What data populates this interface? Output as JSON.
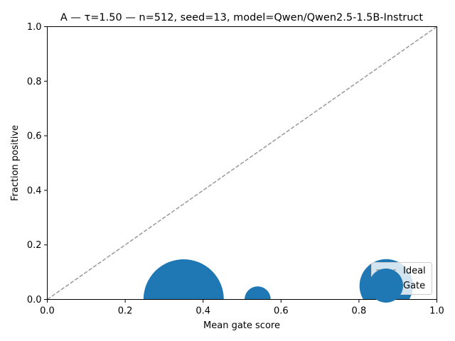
{
  "chart_data": {
    "type": "scatter",
    "title": "A — τ=1.50 — n=512, seed=13, model=Qwen/Qwen2.5-1.5B-Instruct",
    "xlabel": "Mean gate score",
    "ylabel": "Fraction positive",
    "xlim": [
      0.0,
      1.0
    ],
    "ylim": [
      0.0,
      1.0
    ],
    "xticks": [
      "0.0",
      "0.2",
      "0.4",
      "0.6",
      "0.8",
      "1.0"
    ],
    "yticks": [
      "0.0",
      "0.2",
      "0.4",
      "0.6",
      "0.8",
      "1.0"
    ],
    "grid": false,
    "legend_position": "lower right",
    "series": [
      {
        "name": "Ideal",
        "kind": "line",
        "style": "dashed",
        "color": "#999999",
        "x": [
          0.0,
          1.0
        ],
        "y": [
          0.0,
          1.0
        ]
      },
      {
        "name": "Gate",
        "kind": "scatter",
        "color": "#1f77b4",
        "points": [
          {
            "x": 0.35,
            "y": 0.0,
            "size": 5200
          },
          {
            "x": 0.54,
            "y": 0.0,
            "size": 550
          },
          {
            "x": 0.87,
            "y": 0.05,
            "size": 2300
          }
        ]
      }
    ]
  }
}
